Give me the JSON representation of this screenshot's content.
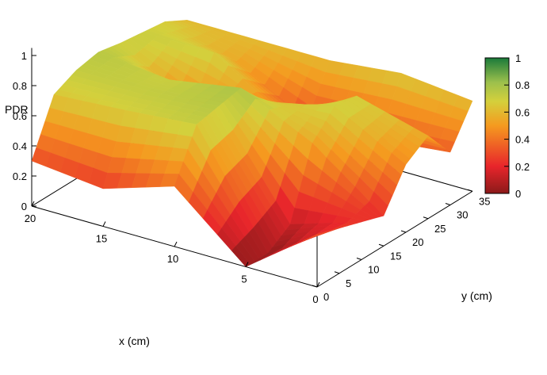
{
  "chart_data": {
    "type": "surface3d",
    "zlabel": "PDR",
    "xlabel": "x (cm)",
    "ylabel": "y (cm)",
    "xlim": [
      0,
      20
    ],
    "ylim": [
      0,
      35
    ],
    "zlim": [
      0,
      1
    ],
    "x_ticks": [
      "0",
      "5",
      "10",
      "15",
      "20"
    ],
    "y_ticks": [
      "0",
      "5",
      "10",
      "15",
      "20",
      "25",
      "30",
      "35"
    ],
    "z_ticks": [
      "0",
      "0.2",
      "0.4",
      "0.6",
      "0.8",
      "1"
    ],
    "colorbar": {
      "ticks": [
        "0",
        "0.2",
        "0.4",
        "0.6",
        "0.8",
        "1"
      ],
      "colors": [
        "#8b1a1a",
        "#e8252b",
        "#f59a1f",
        "#d4d03c",
        "#9cc04c",
        "#1a7a3a"
      ]
    },
    "y": [
      0,
      5,
      10,
      15,
      20,
      25,
      30,
      35
    ],
    "series": [
      {
        "x": 0,
        "z": [
          0.35,
          0.3,
          0.25,
          0.2,
          0.45,
          0.55,
          0.35,
          0.6
        ]
      },
      {
        "x": 5,
        "z": [
          0.0,
          0.0,
          0.1,
          0.55,
          0.7,
          0.68,
          0.3,
          0.65
        ]
      },
      {
        "x": 10,
        "z": [
          0.4,
          0.72,
          0.75,
          0.78,
          0.6,
          0.4,
          0.3,
          0.6
        ]
      },
      {
        "x": 15,
        "z": [
          0.25,
          0.68,
          0.72,
          0.7,
          0.45,
          0.7,
          0.55,
          0.6
        ]
      },
      {
        "x": 20,
        "z": [
          0.3,
          0.65,
          0.72,
          0.75,
          0.72,
          0.7,
          0.68,
          0.6
        ]
      }
    ]
  }
}
